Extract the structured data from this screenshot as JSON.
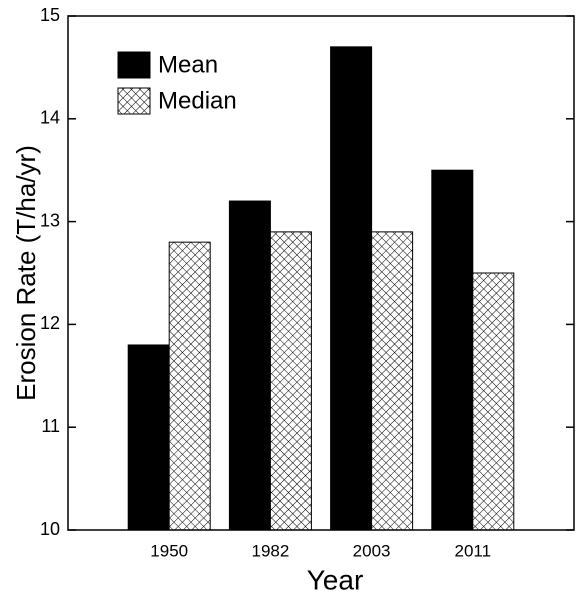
{
  "chart_data": {
    "type": "bar",
    "x_label": "Year",
    "y_label": "Erosion Rate (T/ha/yr)",
    "categories": [
      "1950",
      "1982",
      "2003",
      "2011"
    ],
    "series": [
      {
        "name": "Mean",
        "color": "#000000",
        "values": [
          11.8,
          13.2,
          14.7,
          13.5
        ]
      },
      {
        "name": "Median",
        "color": "#000000",
        "pattern": "crosshatch",
        "values": [
          12.8,
          12.9,
          12.9,
          12.5
        ]
      }
    ],
    "ylim": [
      10,
      15
    ],
    "yticks": [
      10,
      11,
      12,
      13,
      14,
      15
    ],
    "legend": "upper left"
  }
}
